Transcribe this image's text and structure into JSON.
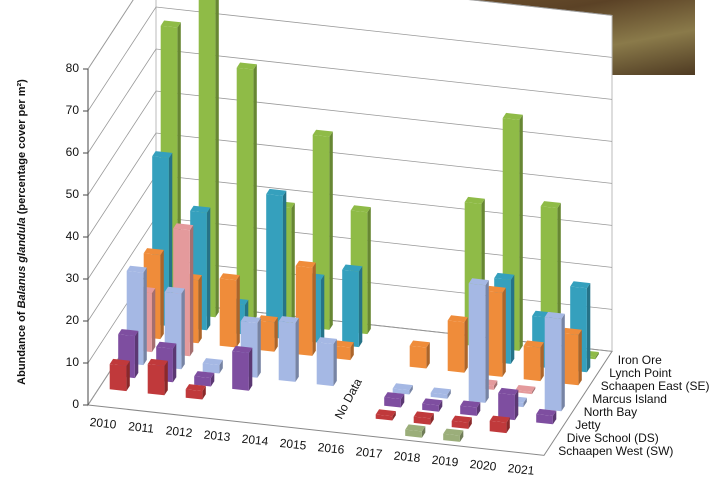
{
  "chart_data": {
    "type": "bar3d",
    "y_label": [
      "Abundance of ",
      "Balanus glandula",
      " (percentage cover per m²)"
    ],
    "annotation": "No Data",
    "categories": [
      "2010",
      "2011",
      "2012",
      "2013",
      "2014",
      "2015",
      "2016",
      "2017",
      "2018",
      "2019",
      "2020",
      "2021"
    ],
    "ylim": [
      0,
      80
    ],
    "yticks": [
      0,
      10,
      20,
      30,
      40,
      50,
      60,
      70,
      80
    ],
    "grid": true,
    "series": [
      {
        "name": "Schaapen West (SW)",
        "color": "#9bae7a",
        "values": [
          null,
          null,
          null,
          null,
          null,
          null,
          null,
          null,
          1.5,
          1.5,
          null,
          null
        ]
      },
      {
        "name": "Dive School (DS)",
        "color": "#c0393b",
        "values": [
          6,
          7,
          2,
          null,
          null,
          null,
          null,
          1,
          1.5,
          1.5,
          2.5,
          null
        ]
      },
      {
        "name": "Jetty",
        "color": "#7e4ea0",
        "values": [
          10,
          8,
          2,
          9,
          null,
          null,
          null,
          2,
          1.5,
          2,
          6,
          2
        ]
      },
      {
        "name": "North Bay",
        "color": "#a5b8e4",
        "values": [
          22,
          18,
          2,
          13,
          14,
          10,
          null,
          1,
          1,
          28,
          1,
          22
        ]
      },
      {
        "name": "Marcus Island",
        "color": "#e49a9c",
        "values": [
          14,
          30,
          null,
          null,
          null,
          null,
          null,
          null,
          null,
          1,
          0.5,
          null
        ]
      },
      {
        "name": "Schaapen East (SE)",
        "color": "#ef8c3a",
        "values": [
          20,
          15,
          16,
          7,
          21,
          3,
          null,
          5,
          12,
          20,
          8,
          12
        ]
      },
      {
        "name": "Lynch Point",
        "color": "#35a0bd",
        "values": [
          40,
          28,
          7,
          34,
          15,
          18,
          null,
          null,
          null,
          20,
          12,
          20
        ]
      },
      {
        "name": "Iron Ore",
        "color": "#8fbb47",
        "values": [
          68,
          80,
          60,
          28,
          46,
          29,
          null,
          null,
          34,
          55,
          35,
          0.5
        ]
      }
    ]
  }
}
